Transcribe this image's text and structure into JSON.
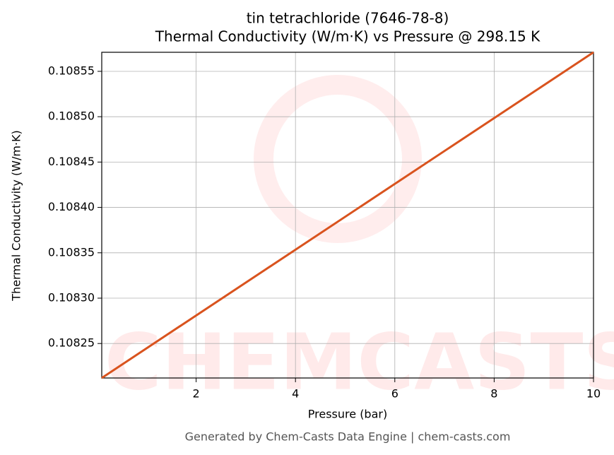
{
  "chart_data": {
    "type": "line",
    "title": "tin tetrachloride (7646-78-8)",
    "subtitle": "Thermal Conductivity (W/m·K) vs Pressure @ 298.15 K",
    "xlabel": "Pressure (bar)",
    "ylabel": "Thermal Conductivity (W/m·K)",
    "footer": "Generated by Chem-Casts Data Engine | chem-casts.com",
    "watermark": "CHEMCASTS",
    "x": [
      0.1,
      10
    ],
    "series": [
      {
        "name": "Thermal Conductivity",
        "color": "#d9531e",
        "values": [
          0.108212,
          0.108571
        ]
      }
    ],
    "xlim": [
      0.1,
      10
    ],
    "ylim": [
      0.108212,
      0.108571
    ],
    "xticks": [
      2,
      4,
      6,
      8,
      10
    ],
    "yticks": [
      0.10825,
      {
        "value": 0.1083,
        "label": "0.10830"
      },
      0.10835,
      {
        "value": 0.1084,
        "label": "0.10840"
      },
      0.10845,
      {
        "value": 0.1085,
        "label": "0.10850"
      },
      0.10855
    ],
    "grid": true
  }
}
